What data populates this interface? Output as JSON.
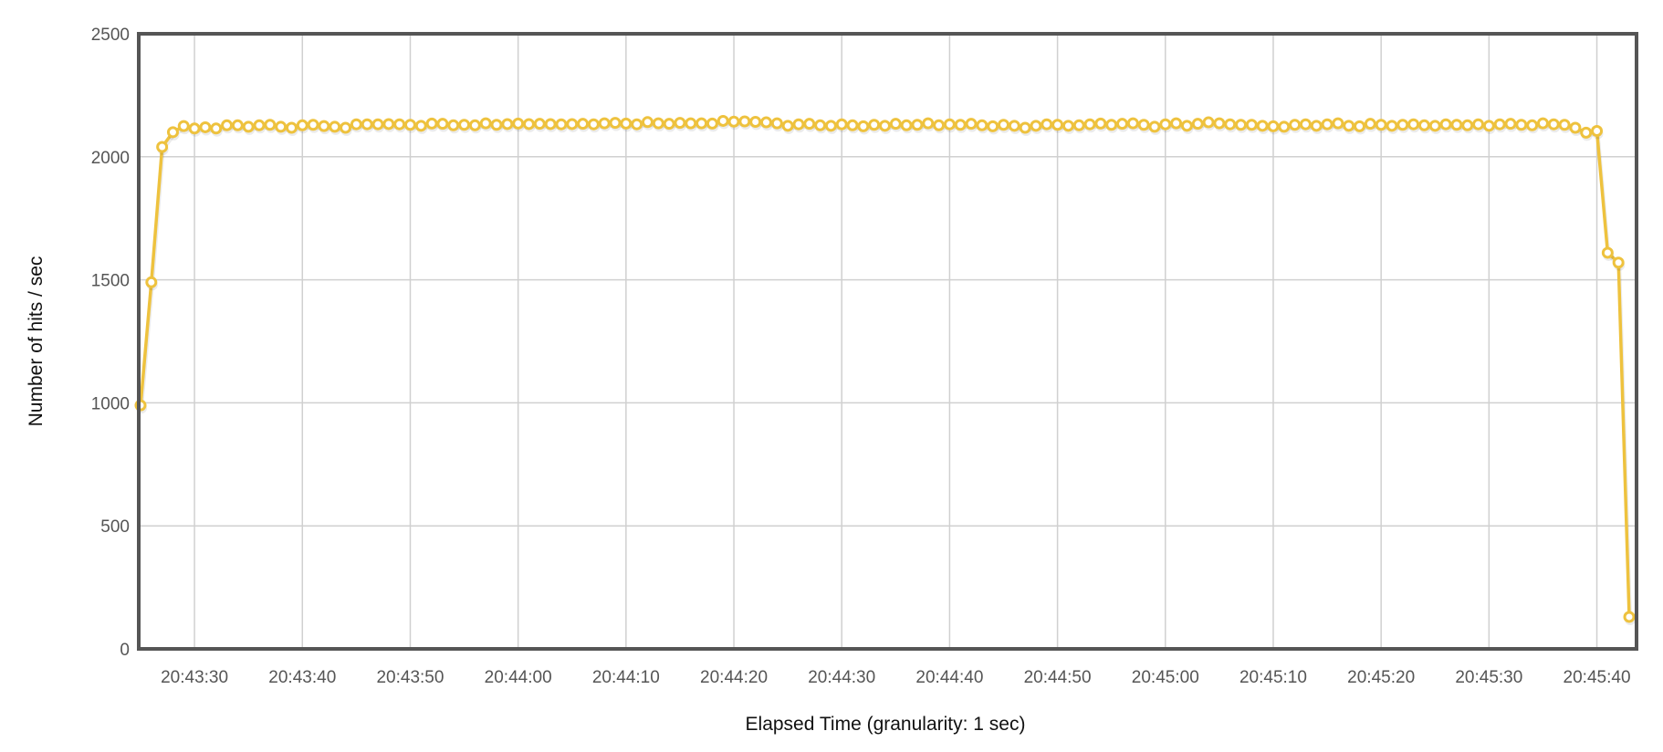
{
  "chart_data": {
    "type": "line",
    "title": "",
    "xlabel": "Elapsed Time (granularity: 1 sec)",
    "ylabel": "Number of hits / sec",
    "ylim": [
      0,
      2500
    ],
    "yticks": [
      0,
      500,
      1000,
      1500,
      2000,
      2500
    ],
    "xlim": [
      "20:43:25",
      "20:45:43"
    ],
    "xticks": [
      "20:43:30",
      "20:43:40",
      "20:43:50",
      "20:44:00",
      "20:44:10",
      "20:44:20",
      "20:44:30",
      "20:44:40",
      "20:44:50",
      "20:45:00",
      "20:45:10",
      "20:45:20",
      "20:45:30",
      "20:45:40"
    ],
    "x_start": "20:43:25",
    "x_step_seconds": 1,
    "grid": true,
    "legend": "none",
    "color": "#EEC23E",
    "marker": "open-circle",
    "values": [
      990,
      1490,
      2040,
      2100,
      2125,
      2115,
      2120,
      2115,
      2128,
      2128,
      2122,
      2128,
      2130,
      2122,
      2118,
      2128,
      2130,
      2125,
      2122,
      2118,
      2132,
      2132,
      2132,
      2133,
      2132,
      2130,
      2126,
      2135,
      2134,
      2128,
      2130,
      2128,
      2136,
      2130,
      2133,
      2135,
      2133,
      2134,
      2133,
      2132,
      2133,
      2134,
      2132,
      2136,
      2138,
      2135,
      2132,
      2141,
      2136,
      2134,
      2138,
      2136,
      2136,
      2135,
      2146,
      2143,
      2144,
      2142,
      2140,
      2136,
      2126,
      2132,
      2134,
      2128,
      2126,
      2132,
      2128,
      2124,
      2130,
      2126,
      2134,
      2128,
      2130,
      2136,
      2128,
      2132,
      2130,
      2134,
      2128,
      2124,
      2130,
      2126,
      2118,
      2126,
      2132,
      2130,
      2126,
      2128,
      2132,
      2135,
      2130,
      2134,
      2136,
      2130,
      2122,
      2132,
      2136,
      2126,
      2134,
      2140,
      2136,
      2132,
      2130,
      2130,
      2126,
      2124,
      2122,
      2130,
      2132,
      2126,
      2132,
      2136,
      2126,
      2124,
      2134,
      2130,
      2126,
      2130,
      2132,
      2128,
      2126,
      2132,
      2130,
      2128,
      2132,
      2126,
      2132,
      2134,
      2130,
      2128,
      2136,
      2132,
      2130,
      2118,
      2098,
      2105,
      1610,
      1570,
      130
    ]
  }
}
